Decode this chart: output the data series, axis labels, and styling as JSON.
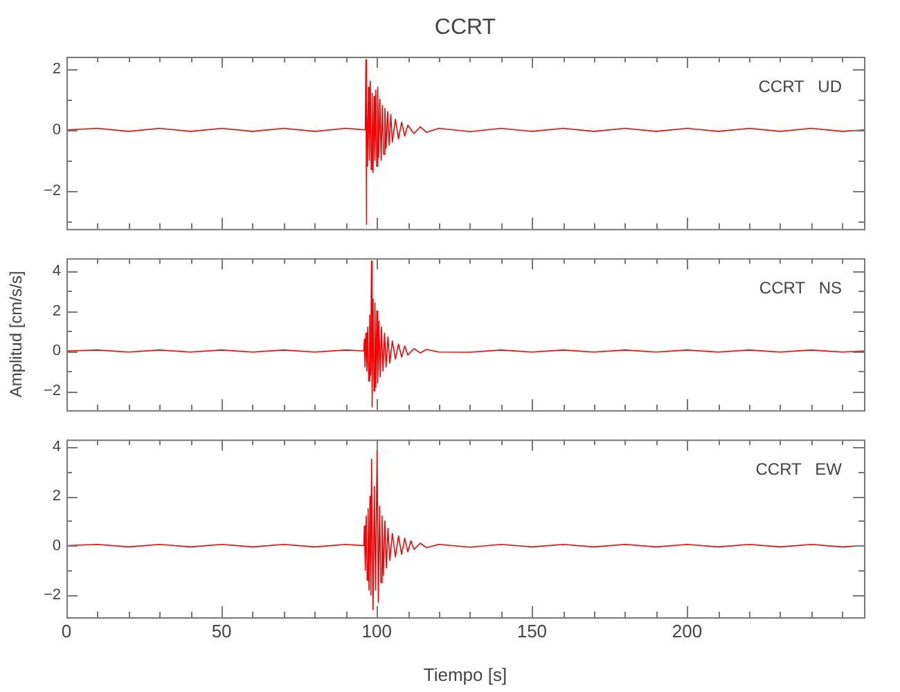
{
  "chart_data": [
    {
      "type": "line",
      "title": "CCRT",
      "annotations": [
        "CCRT   UD"
      ],
      "color": "#ff0000",
      "marker": "none",
      "tick_labels": "y",
      "xlim": [
        0,
        257
      ],
      "xticks": [
        0,
        {
          "value": 10,
          "label": null
        },
        {
          "value": 20,
          "label": null
        },
        {
          "value": 30,
          "label": null
        },
        {
          "value": 40,
          "label": null
        },
        50,
        {
          "value": 60,
          "label": null
        },
        {
          "value": 70,
          "label": null
        },
        {
          "value": 80,
          "label": null
        },
        {
          "value": 90,
          "label": null
        },
        100,
        {
          "value": 110,
          "label": null
        },
        {
          "value": 120,
          "label": null
        },
        {
          "value": 130,
          "label": null
        },
        {
          "value": 140,
          "label": null
        },
        150,
        {
          "value": 160,
          "label": null
        },
        {
          "value": 170,
          "label": null
        },
        {
          "value": 180,
          "label": null
        },
        {
          "value": 190,
          "label": null
        },
        200,
        {
          "value": 210,
          "label": null
        },
        {
          "value": 220,
          "label": null
        },
        {
          "value": 230,
          "label": null
        },
        {
          "value": 240,
          "label": null
        },
        {
          "value": 250,
          "label": null
        }
      ],
      "ylim": [
        -3.25,
        2.4
      ],
      "yticks": [
        {
          "value": -3,
          "label": null
        },
        -2,
        {
          "value": -1,
          "label": null
        },
        0,
        {
          "value": 1,
          "label": null
        },
        2
      ],
      "x": [
        0,
        10,
        20,
        30,
        40,
        50,
        60,
        70,
        80,
        90,
        96.3,
        96.5,
        96.6,
        96.8,
        97,
        97.3,
        97.6,
        97.9,
        98.2,
        98.5,
        98.8,
        99.1,
        99.4,
        99.7,
        100,
        100.3,
        100.6,
        101,
        101.4,
        101.8,
        102.2,
        102.6,
        103,
        103.5,
        104,
        104.5,
        105,
        106,
        107,
        108,
        109,
        110,
        112,
        114,
        116,
        120,
        130,
        140,
        150,
        160,
        170,
        180,
        190,
        200,
        210,
        220,
        230,
        240,
        250,
        257
      ],
      "values": [
        0,
        0.05,
        -0.05,
        0.05,
        -0.05,
        0.05,
        -0.05,
        0.05,
        -0.05,
        0.05,
        0,
        2.3,
        -3.1,
        1.0,
        -1.2,
        1.4,
        -1.0,
        1.6,
        -1.3,
        1.2,
        -1.4,
        1.1,
        -1.0,
        1.3,
        -1.2,
        1.4,
        -0.9,
        1.0,
        -1.0,
        0.8,
        -0.8,
        0.7,
        -0.6,
        0.6,
        -0.5,
        0.5,
        -0.4,
        0.35,
        -0.3,
        0.25,
        -0.2,
        0.15,
        -0.12,
        0.1,
        -0.08,
        0.05,
        -0.06,
        0.05,
        -0.05,
        0.05,
        -0.05,
        0.05,
        -0.05,
        0.05,
        -0.05,
        0.05,
        -0.05,
        0.05,
        -0.05,
        0
      ]
    },
    {
      "type": "line",
      "ylabel": "Amplitud [cm/s/s]",
      "annotations": [
        "CCRT   NS"
      ],
      "color": "#ff0000",
      "marker": "none",
      "tick_labels": "y",
      "xlim": [
        0,
        257
      ],
      "xticks": [
        0,
        {
          "value": 10,
          "label": null
        },
        {
          "value": 20,
          "label": null
        },
        {
          "value": 30,
          "label": null
        },
        {
          "value": 40,
          "label": null
        },
        50,
        {
          "value": 60,
          "label": null
        },
        {
          "value": 70,
          "label": null
        },
        {
          "value": 80,
          "label": null
        },
        {
          "value": 90,
          "label": null
        },
        100,
        {
          "value": 110,
          "label": null
        },
        {
          "value": 120,
          "label": null
        },
        {
          "value": 130,
          "label": null
        },
        {
          "value": 140,
          "label": null
        },
        150,
        {
          "value": 160,
          "label": null
        },
        {
          "value": 170,
          "label": null
        },
        {
          "value": 180,
          "label": null
        },
        {
          "value": 190,
          "label": null
        },
        200,
        {
          "value": 210,
          "label": null
        },
        {
          "value": 220,
          "label": null
        },
        {
          "value": 230,
          "label": null
        },
        {
          "value": 240,
          "label": null
        },
        {
          "value": 250,
          "label": null
        }
      ],
      "ylim": [
        -2.96,
        4.64
      ],
      "yticks": [
        -2,
        {
          "value": -1,
          "label": null
        },
        0,
        {
          "value": 1,
          "label": null
        },
        2,
        {
          "value": 3,
          "label": null
        },
        4
      ],
      "x": [
        0,
        10,
        20,
        30,
        40,
        50,
        60,
        70,
        80,
        90,
        95.8,
        96,
        96.2,
        96.5,
        96.8,
        97.1,
        97.4,
        97.7,
        98,
        98.3,
        98.5,
        98.8,
        99.1,
        99.4,
        99.7,
        100,
        100.3,
        100.7,
        101.1,
        101.5,
        102,
        102.5,
        103,
        103.6,
        104.2,
        105,
        106,
        107,
        108,
        109,
        110,
        112,
        114,
        116,
        120,
        130,
        140,
        150,
        160,
        170,
        180,
        190,
        200,
        210,
        220,
        230,
        240,
        250,
        257
      ],
      "values": [
        0,
        0.05,
        -0.05,
        0.05,
        -0.05,
        0.05,
        -0.05,
        0.05,
        -0.05,
        0.05,
        0,
        0.6,
        -0.8,
        0.9,
        -1.0,
        1.2,
        -1.5,
        1.8,
        -1.2,
        4.5,
        -2.8,
        2.6,
        -2.0,
        2.4,
        -1.8,
        2.0,
        -1.6,
        1.5,
        -1.3,
        1.2,
        -1.0,
        0.9,
        -0.8,
        0.7,
        -0.6,
        0.5,
        -0.4,
        0.35,
        -0.3,
        0.25,
        -0.2,
        0.12,
        -0.1,
        0.08,
        -0.05,
        -0.06,
        0.05,
        -0.05,
        0.05,
        -0.05,
        0.05,
        -0.05,
        0.05,
        -0.05,
        0.05,
        -0.05,
        0.05,
        -0.05,
        0
      ]
    },
    {
      "type": "line",
      "xlabel": "Tiempo [s]",
      "annotations": [
        "CCRT   EW"
      ],
      "color": "#ff0000",
      "marker": "none",
      "xlim": [
        0,
        257
      ],
      "xticks": [
        0,
        {
          "value": 10,
          "label": null
        },
        {
          "value": 20,
          "label": null
        },
        {
          "value": 30,
          "label": null
        },
        {
          "value": 40,
          "label": null
        },
        50,
        {
          "value": 60,
          "label": null
        },
        {
          "value": 70,
          "label": null
        },
        {
          "value": 80,
          "label": null
        },
        {
          "value": 90,
          "label": null
        },
        100,
        {
          "value": 110,
          "label": null
        },
        {
          "value": 120,
          "label": null
        },
        {
          "value": 130,
          "label": null
        },
        {
          "value": 140,
          "label": null
        },
        150,
        {
          "value": 160,
          "label": null
        },
        {
          "value": 170,
          "label": null
        },
        {
          "value": 180,
          "label": null
        },
        {
          "value": 190,
          "label": null
        },
        200,
        {
          "value": 210,
          "label": null
        },
        {
          "value": 220,
          "label": null
        },
        {
          "value": 230,
          "label": null
        },
        {
          "value": 240,
          "label": null
        },
        {
          "value": 250,
          "label": null
        }
      ],
      "ylim": [
        -2.9,
        4.3
      ],
      "yticks": [
        -2,
        {
          "value": -1,
          "label": null
        },
        0,
        {
          "value": 1,
          "label": null
        },
        2,
        {
          "value": 3,
          "label": null
        },
        4
      ],
      "x": [
        0,
        10,
        20,
        30,
        40,
        50,
        60,
        70,
        80,
        90,
        95.8,
        96,
        96.3,
        96.6,
        96.9,
        97.2,
        97.5,
        97.8,
        98.1,
        98.3,
        98.8,
        99.2,
        99.6,
        100.1,
        100.5,
        100.9,
        101.3,
        101.7,
        102.1,
        102.6,
        103.1,
        103.6,
        104.2,
        105,
        106,
        107,
        108,
        109,
        110,
        111,
        112,
        114,
        116,
        120,
        130,
        140,
        150,
        160,
        170,
        180,
        190,
        200,
        210,
        220,
        230,
        240,
        250,
        257
      ],
      "values": [
        0,
        0.05,
        -0.05,
        0.05,
        -0.05,
        0.05,
        -0.05,
        0.05,
        -0.05,
        0.05,
        0,
        0.8,
        -1.0,
        1.2,
        -1.4,
        1.5,
        -1.8,
        2.0,
        -2.0,
        3.5,
        -2.6,
        2.4,
        -1.8,
        3.9,
        -2.3,
        1.6,
        -1.5,
        1.2,
        -1.2,
        1.0,
        -0.9,
        0.7,
        -0.6,
        0.5,
        -0.45,
        0.4,
        -0.35,
        0.3,
        -0.25,
        0.2,
        -0.15,
        0.1,
        -0.08,
        0.05,
        -0.06,
        0.05,
        -0.05,
        0.05,
        -0.05,
        0.05,
        -0.05,
        0.05,
        -0.05,
        0.05,
        -0.05,
        0.05,
        -0.05,
        0
      ]
    }
  ]
}
